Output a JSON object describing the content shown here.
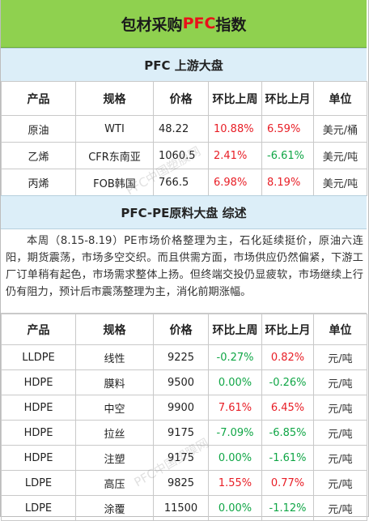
{
  "header": {
    "title_before": "包材采购",
    "title_highlight": "PFC",
    "title_after": "指数"
  },
  "upstream": {
    "title": "PFC 上游大盘",
    "columns": [
      "产品",
      "规格",
      "价格",
      "环比上周",
      "环比上月",
      "单位"
    ],
    "rows": [
      {
        "product": "原油",
        "spec": "WTI",
        "price": "48.22",
        "wow": "10.88%",
        "mom": "6.59%",
        "unit": "美元/桶"
      },
      {
        "product": "乙烯",
        "spec": "CFR东南亚",
        "price": "1060.5",
        "wow": "2.41%",
        "mom": "-6.61%",
        "unit": "美元/吨"
      },
      {
        "product": "丙烯",
        "spec": "FOB韩国",
        "price": "766.5",
        "wow": "6.98%",
        "mom": "8.19%",
        "unit": "美元/吨"
      }
    ]
  },
  "pe": {
    "title": "PFC-PE原料大盘 综述",
    "summary": "本周（8.15-8.19）PE市场价格整理为主，石化延续挺价，原油六连阳，期货震荡，市场多空交织。而且供需方面，市场供应仍然偏紧，下游工厂订单稍有起色，市场需求整体上扬。但终端交投仍显疲软，市场继续上行仍有阻力，预计后市震荡整理为主，消化前期涨幅。",
    "columns": [
      "产品",
      "规格",
      "价格",
      "环比上周",
      "环比上月",
      "单位"
    ],
    "rows": [
      {
        "product": "LLDPE",
        "spec": "线性",
        "price": "9225",
        "wow": "-0.27%",
        "mom": "0.82%",
        "unit": "元/吨"
      },
      {
        "product": "HDPE",
        "spec": "膜料",
        "price": "9500",
        "wow": "0.00%",
        "mom": "-0.26%",
        "unit": "元/吨"
      },
      {
        "product": "HDPE",
        "spec": "中空",
        "price": "9900",
        "wow": "7.61%",
        "mom": "6.45%",
        "unit": "元/吨"
      },
      {
        "product": "HDPE",
        "spec": "拉丝",
        "price": "9175",
        "wow": "-7.09%",
        "mom": "-6.85%",
        "unit": "元/吨"
      },
      {
        "product": "HDPE",
        "spec": "注塑",
        "price": "9175",
        "wow": "0.00%",
        "mom": "-1.61%",
        "unit": "元/吨"
      },
      {
        "product": "LDPE",
        "spec": "高压",
        "price": "9825",
        "wow": "1.55%",
        "mom": "0.77%",
        "unit": "元/吨"
      },
      {
        "product": "LDPE",
        "spec": "涂覆",
        "price": "11500",
        "wow": "0.00%",
        "mom": "-1.12%",
        "unit": "元/吨"
      }
    ]
  },
  "watermark": "PFC中国塑膜网",
  "colors": {
    "header_bg": "#8fd14f",
    "band_bg": "#dceef8",
    "positive": "#e81e26",
    "negative": "#10a646"
  }
}
